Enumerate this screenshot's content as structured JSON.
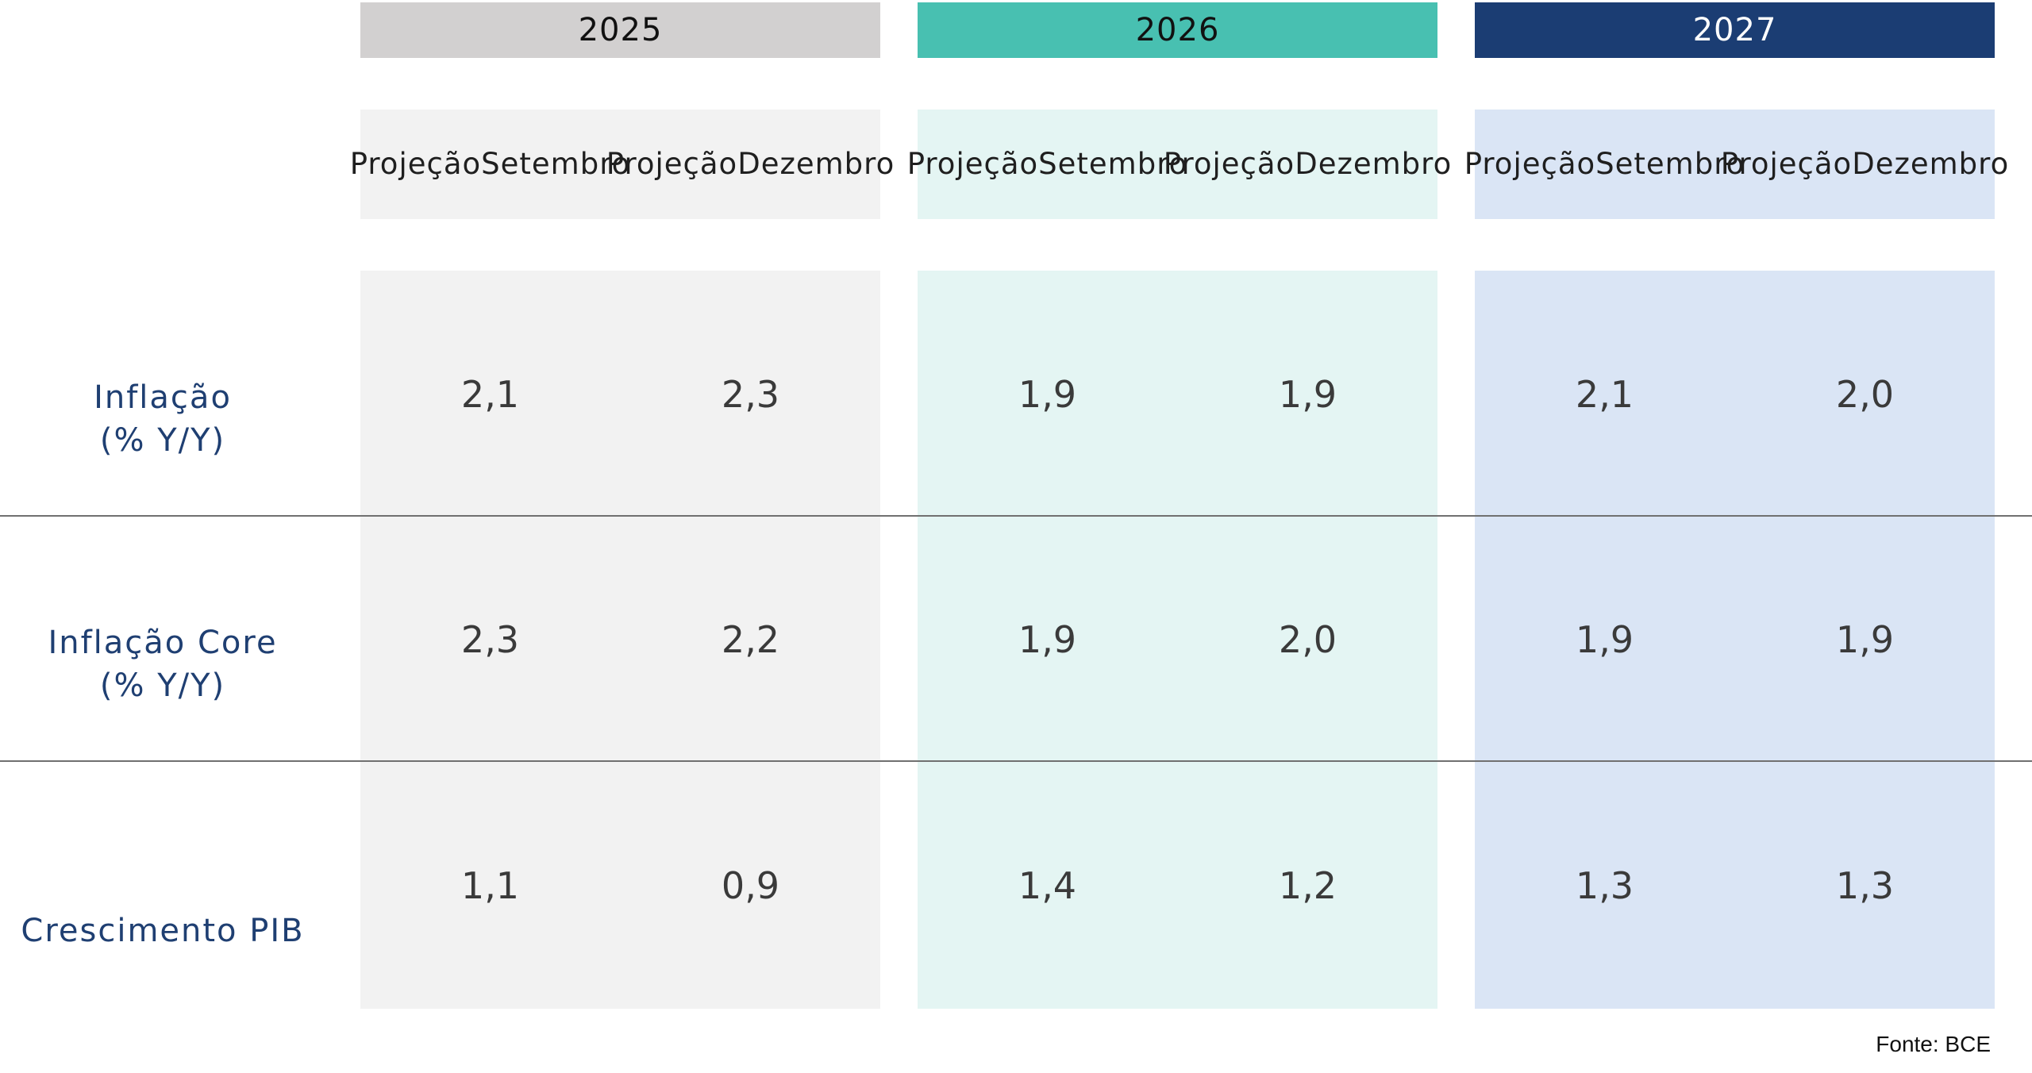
{
  "colors": {
    "y2025_header": "#d2d0d0",
    "y2025_band": "#f2f2f2",
    "y2026_header": "#48c0b1",
    "y2026_band": "#e4f5f3",
    "y2027_header": "#1b3d73",
    "y2027_band": "#dae5f5",
    "row_label": "#1f3f72"
  },
  "years": [
    {
      "label": "2025",
      "sub": [
        {
          "line1": "Projeção",
          "line2": "Setembro"
        },
        {
          "line1": "Projeção",
          "line2": "Dezembro"
        }
      ]
    },
    {
      "label": "2026",
      "sub": [
        {
          "line1": "Projeção",
          "line2": "Setembro"
        },
        {
          "line1": "Projeção",
          "line2": "Dezembro"
        }
      ]
    },
    {
      "label": "2027",
      "sub": [
        {
          "line1": "Projeção",
          "line2": "Setembro"
        },
        {
          "line1": "Projeção",
          "line2": "Dezembro"
        }
      ]
    }
  ],
  "rows": [
    {
      "label_line1": "Inflação",
      "label_line2": "(% Y/Y)",
      "values": [
        "2,1",
        "2,3",
        "1,9",
        "1,9",
        "2,1",
        "2,0"
      ]
    },
    {
      "label_line1": "Inflação Core",
      "label_line2": "(% Y/Y)",
      "values": [
        "2,3",
        "2,2",
        "1,9",
        "2,0",
        "1,9",
        "1,9"
      ]
    },
    {
      "label_line1": "Crescimento PIB",
      "label_line2": "",
      "values": [
        "1,1",
        "0,9",
        "1,4",
        "1,2",
        "1,3",
        "1,3"
      ]
    }
  ],
  "source": "Fonte: BCE"
}
